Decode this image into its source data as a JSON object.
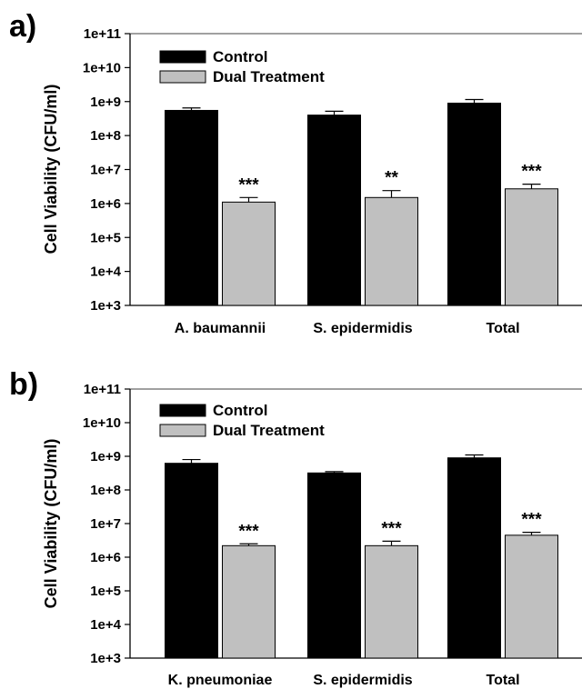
{
  "chart_data": [
    {
      "type": "bar",
      "panel": "a)",
      "ylabel": "Cell Viability (CFU/ml)",
      "yscale": "log",
      "ylim": [
        1000,
        100000000000
      ],
      "yticks": [
        "1e+3",
        "1e+4",
        "1e+5",
        "1e+6",
        "1e+7",
        "1e+8",
        "1e+9",
        "1e+10",
        "1e+11"
      ],
      "categories": [
        "A. baumannii",
        "S. epidermidis",
        "Total"
      ],
      "series": [
        {
          "name": "Control",
          "color": "#000000",
          "values": [
            550000000,
            400000000,
            900000000
          ],
          "errors": [
            650000000,
            520000000,
            1150000000
          ]
        },
        {
          "name": "Dual Treatment",
          "color": "#c0c0c0",
          "values": [
            1100000,
            1500000,
            2700000
          ],
          "errors": [
            1500000,
            2400000,
            3700000
          ]
        }
      ],
      "significance": [
        "***",
        "**",
        "***"
      ],
      "legend_position": "top-left",
      "grid": false
    },
    {
      "type": "bar",
      "panel": "b)",
      "ylabel": "Cell Viability (CFU/ml)",
      "yscale": "log",
      "ylim": [
        1000,
        100000000000
      ],
      "yticks": [
        "1e+3",
        "1e+4",
        "1e+5",
        "1e+6",
        "1e+7",
        "1e+8",
        "1e+9",
        "1e+10",
        "1e+11"
      ],
      "categories": [
        "K. pneumoniae",
        "S. epidermidis",
        "Total"
      ],
      "series": [
        {
          "name": "Control",
          "color": "#000000",
          "values": [
            620000000,
            320000000,
            900000000
          ],
          "errors": [
            800000000,
            350000000,
            1100000000
          ]
        },
        {
          "name": "Dual Treatment",
          "color": "#c0c0c0",
          "values": [
            2200000,
            2200000,
            4500000
          ],
          "errors": [
            2500000,
            3000000,
            5500000
          ]
        }
      ],
      "significance": [
        "***",
        "***",
        "***"
      ],
      "legend_position": "top-left",
      "grid": false
    }
  ]
}
